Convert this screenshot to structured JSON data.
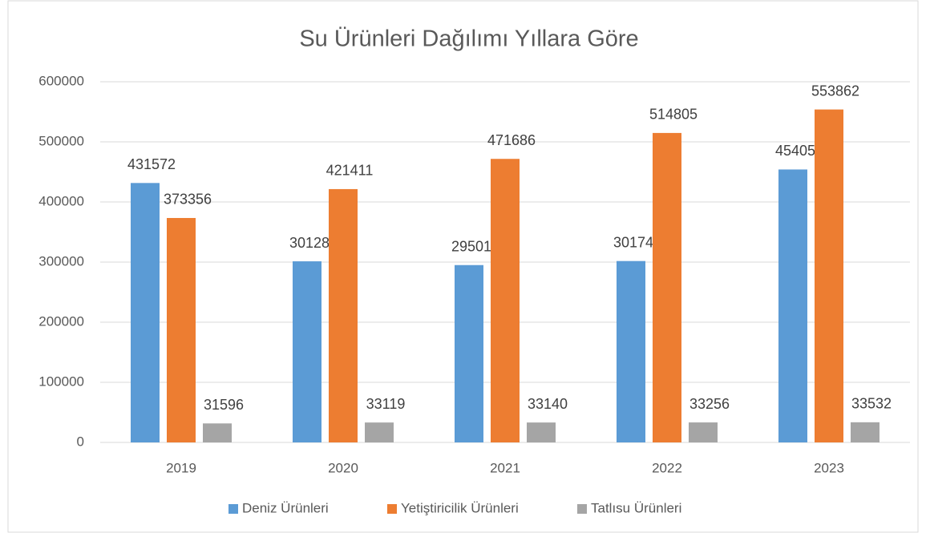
{
  "chart_data": {
    "type": "bar",
    "title": "Su Ürünleri Dağılımı Yıllara Göre",
    "categories": [
      "2019",
      "2020",
      "2021",
      "2022",
      "2023"
    ],
    "series": [
      {
        "name": "Deniz Ürünleri",
        "color": "#5b9bd5",
        "values": [
          431572,
          301281,
          295018,
          301747,
          454059
        ]
      },
      {
        "name": "Yetiştiricilik Ürünleri",
        "color": "#ed7d31",
        "values": [
          373356,
          421411,
          471686,
          514805,
          553862
        ]
      },
      {
        "name": "Tatlısu Ürünleri",
        "color": "#a5a5a5",
        "values": [
          31596,
          33119,
          33140,
          33256,
          33532
        ]
      }
    ],
    "ylim": [
      0,
      600000
    ],
    "yticks": [
      0,
      100000,
      200000,
      300000,
      400000,
      500000,
      600000
    ],
    "grid": true,
    "legend": "bottom"
  }
}
